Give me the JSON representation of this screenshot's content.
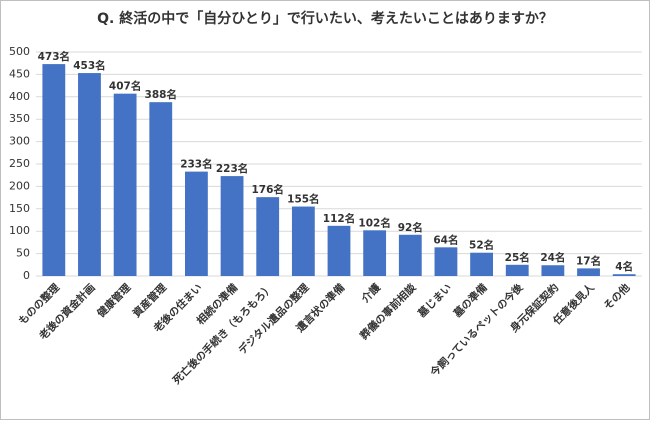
{
  "chart_data": {
    "type": "bar",
    "title": "Q. 終活の中で「自分ひとり」で行いたい、考えたいことはありますか？",
    "categories": [
      "ものの整理",
      "老後の資金計画",
      "健康管理",
      "資産管理",
      "老後の住まい",
      "相続の準備",
      "死亡後の手続き（もろもろ）",
      "デジタル遺品の整理",
      "遺言状の準備",
      "介護",
      "葬儀の事前相談",
      "墓じまい",
      "墓の準備",
      "今飼っているペットの今後",
      "身元保証契約",
      "任意後見人",
      "その他"
    ],
    "values": [
      473,
      453,
      407,
      388,
      233,
      223,
      176,
      155,
      112,
      102,
      92,
      64,
      52,
      25,
      24,
      17,
      4
    ],
    "value_labels": [
      "473名",
      "453名",
      "407名",
      "388名",
      "233名",
      "223名",
      "176名",
      "155名",
      "112名",
      "102名",
      "92名",
      "64名",
      "52名",
      "25名",
      "24名",
      "17名",
      "4名"
    ],
    "color": "#4472c4",
    "ylim": [
      0,
      500
    ],
    "yticks": [
      0,
      50,
      100,
      150,
      200,
      250,
      300,
      350,
      400,
      450,
      500
    ],
    "grid": true
  }
}
